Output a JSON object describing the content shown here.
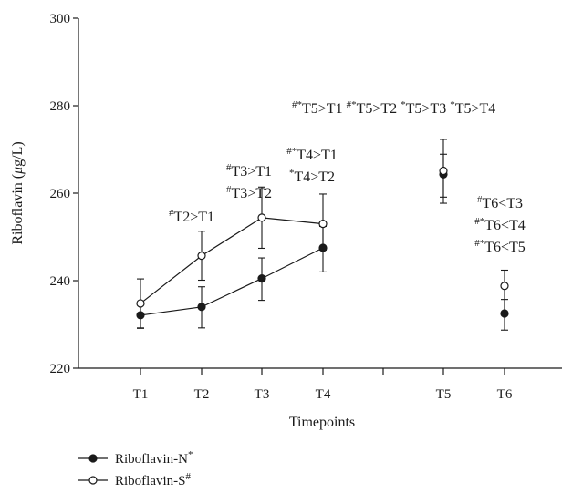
{
  "chart_data": {
    "type": "line",
    "xlabel": "Timepoints",
    "ylabel": "Riboflavin (μg/L)",
    "ylabel_parts": [
      "Riboflavin (",
      "μ",
      "g/L)"
    ],
    "ylim": [
      220,
      300
    ],
    "yticks": [
      "220",
      "240",
      "260",
      "280",
      "300"
    ],
    "categories": [
      "T1",
      "T2",
      "T3",
      "T4",
      "T5",
      "T6"
    ],
    "grid": false,
    "legend_position": "bottom-left",
    "series": [
      {
        "name": "Riboflavin-N",
        "name_sup": "*",
        "marker": "filled-circle",
        "color": "#1a1a1a",
        "values": [
          232.1,
          234.0,
          240.5,
          247.5,
          264.3,
          232.5
        ],
        "err_lower": [
          3.0,
          4.8,
          5.0,
          5.5,
          6.6,
          3.8
        ],
        "err_upper": [
          3.0,
          4.6,
          4.7,
          4.9,
          4.6,
          3.2
        ],
        "connected_segments": [
          [
            0,
            3
          ]
        ]
      },
      {
        "name": "Riboflavin-S",
        "name_sup": "#",
        "marker": "open-circle",
        "color": "#1a1a1a",
        "values": [
          234.8,
          245.7,
          254.4,
          253.0,
          265.1,
          238.8
        ],
        "err_lower": [
          5.6,
          5.6,
          7.0,
          6.0,
          6.0,
          6.0
        ],
        "err_upper": [
          5.6,
          5.6,
          7.0,
          6.8,
          7.2,
          3.6
        ],
        "connected_segments": [
          [
            0,
            3
          ]
        ]
      }
    ],
    "annotations": [
      {
        "at": "T2",
        "lines": [
          {
            "sup": "#",
            "text": "T2>T1"
          }
        ]
      },
      {
        "at": "T3",
        "lines": [
          {
            "sup": "#",
            "text": "T3>T1"
          },
          {
            "sup": "#",
            "text": "T3>T2"
          }
        ]
      },
      {
        "at": "T4",
        "lines": [
          {
            "sup": "#*",
            "text": "T4>T1"
          },
          {
            "sup": "*",
            "text": "T4>T2"
          }
        ]
      },
      {
        "at": "T5",
        "lines": [
          {
            "sup": "#*",
            "text": "T5>T1 "
          },
          {
            "sup": "#*",
            "text": "T5>T2 "
          },
          {
            "sup": "*",
            "text": "T5>T3 "
          },
          {
            "sup": "*",
            "text": "T5>T4"
          }
        ]
      },
      {
        "at": "T6",
        "lines": [
          {
            "sup": "#",
            "text": "T6<T3"
          },
          {
            "sup": "#*",
            "text": "T6<T4"
          },
          {
            "sup": "#*",
            "text": "T6<T5"
          }
        ]
      }
    ]
  }
}
